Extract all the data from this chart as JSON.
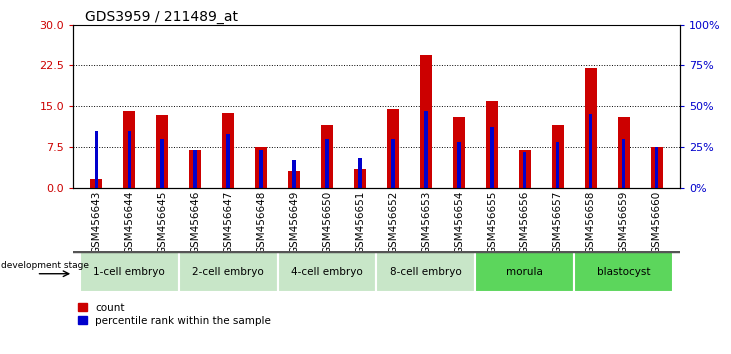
{
  "title": "GDS3959 / 211489_at",
  "samples": [
    "GSM456643",
    "GSM456644",
    "GSM456645",
    "GSM456646",
    "GSM456647",
    "GSM456648",
    "GSM456649",
    "GSM456650",
    "GSM456651",
    "GSM456652",
    "GSM456653",
    "GSM456654",
    "GSM456655",
    "GSM456656",
    "GSM456657",
    "GSM456658",
    "GSM456659",
    "GSM456660"
  ],
  "counts": [
    1.5,
    14.2,
    13.3,
    7.0,
    13.8,
    7.5,
    3.0,
    11.5,
    3.5,
    14.5,
    24.5,
    13.0,
    16.0,
    7.0,
    11.5,
    22.0,
    13.0,
    7.5
  ],
  "percentiles": [
    35,
    35,
    30,
    23,
    33,
    23,
    17,
    30,
    18,
    30,
    47,
    28,
    37,
    22,
    28,
    45,
    30,
    25
  ],
  "stages": [
    {
      "label": "1-cell embryo",
      "start": 0,
      "end": 3,
      "color": "#c8e6c8"
    },
    {
      "label": "2-cell embryo",
      "start": 3,
      "end": 6,
      "color": "#c8e6c8"
    },
    {
      "label": "4-cell embryo",
      "start": 6,
      "end": 9,
      "color": "#c8e6c8"
    },
    {
      "label": "8-cell embryo",
      "start": 9,
      "end": 12,
      "color": "#c8e6c8"
    },
    {
      "label": "morula",
      "start": 12,
      "end": 15,
      "color": "#5cd65c"
    },
    {
      "label": "blastocyst",
      "start": 15,
      "end": 18,
      "color": "#5cd65c"
    }
  ],
  "ylim_left": [
    0,
    30
  ],
  "ylim_right": [
    0,
    100
  ],
  "yticks_left": [
    0,
    7.5,
    15,
    22.5,
    30
  ],
  "yticks_right": [
    0,
    25,
    50,
    75,
    100
  ],
  "bar_color_count": "#cc0000",
  "bar_color_pct": "#0000cc",
  "background_color": "#ffffff",
  "title_fontsize": 10,
  "tick_label_fontsize": 7.5,
  "gray_band_color": "#cccccc",
  "stage_divider_color": "#555555"
}
